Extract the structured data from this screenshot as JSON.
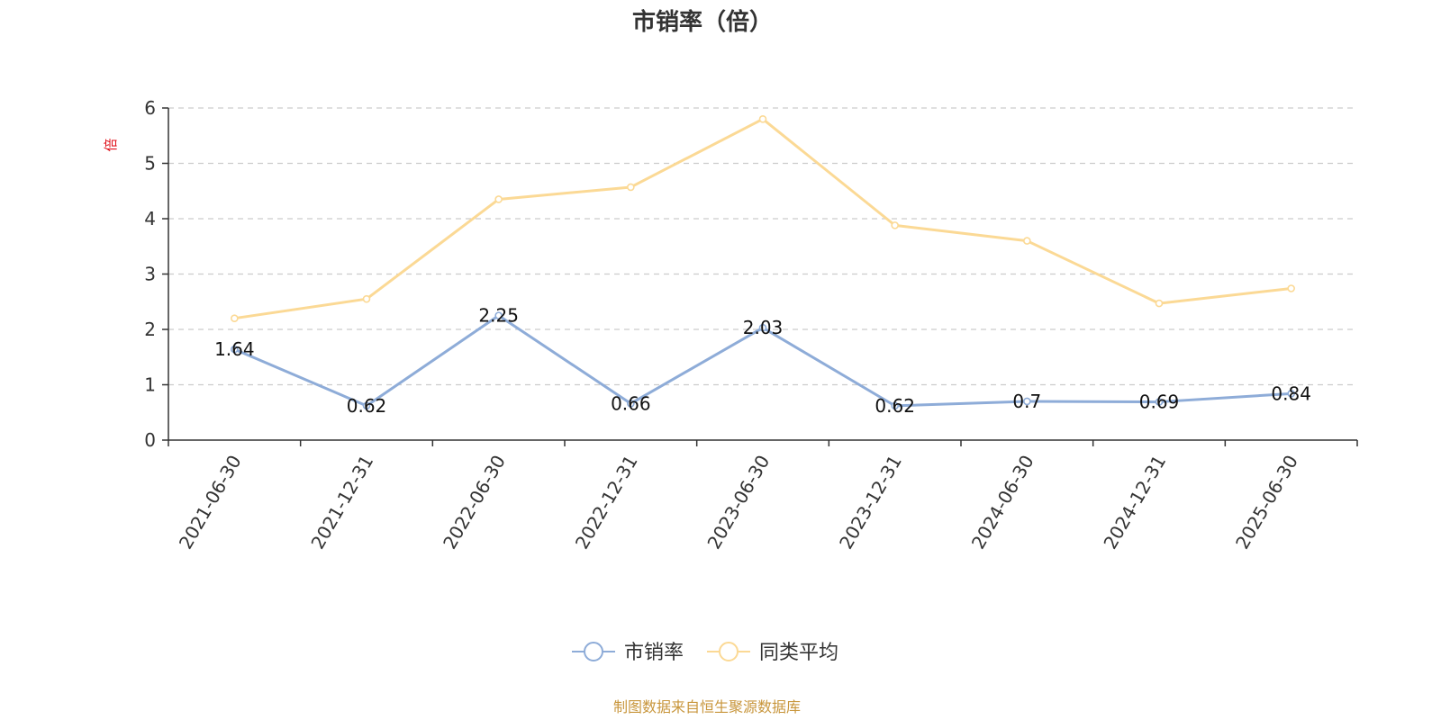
{
  "chart_data": {
    "type": "line",
    "title": "市销率（倍）",
    "ylabel": "倍",
    "xlabel": "",
    "categories": [
      "2021-06-30",
      "2021-12-31",
      "2022-06-30",
      "2022-12-31",
      "2023-06-30",
      "2023-12-31",
      "2024-06-30",
      "2024-12-31",
      "2025-06-30"
    ],
    "ylim": [
      0,
      6
    ],
    "yticks": [
      0,
      1,
      2,
      3,
      4,
      5,
      6
    ],
    "grid": true,
    "legend_position": "bottom-center",
    "series": [
      {
        "name": "市销率",
        "color": "#8eacd8",
        "values": [
          1.64,
          0.62,
          2.25,
          0.66,
          2.03,
          0.62,
          0.7,
          0.69,
          0.84
        ],
        "value_labels": [
          "1.64",
          "0.62",
          "2.25",
          "0.66",
          "2.03",
          "0.62",
          "0.7",
          "0.69",
          "0.84"
        ]
      },
      {
        "name": "同类平均",
        "color": "#fbd995",
        "values": [
          2.2,
          2.55,
          4.35,
          4.57,
          5.8,
          3.88,
          3.6,
          2.47,
          2.74
        ]
      }
    ]
  },
  "source_note": "制图数据来自恒生聚源数据库"
}
